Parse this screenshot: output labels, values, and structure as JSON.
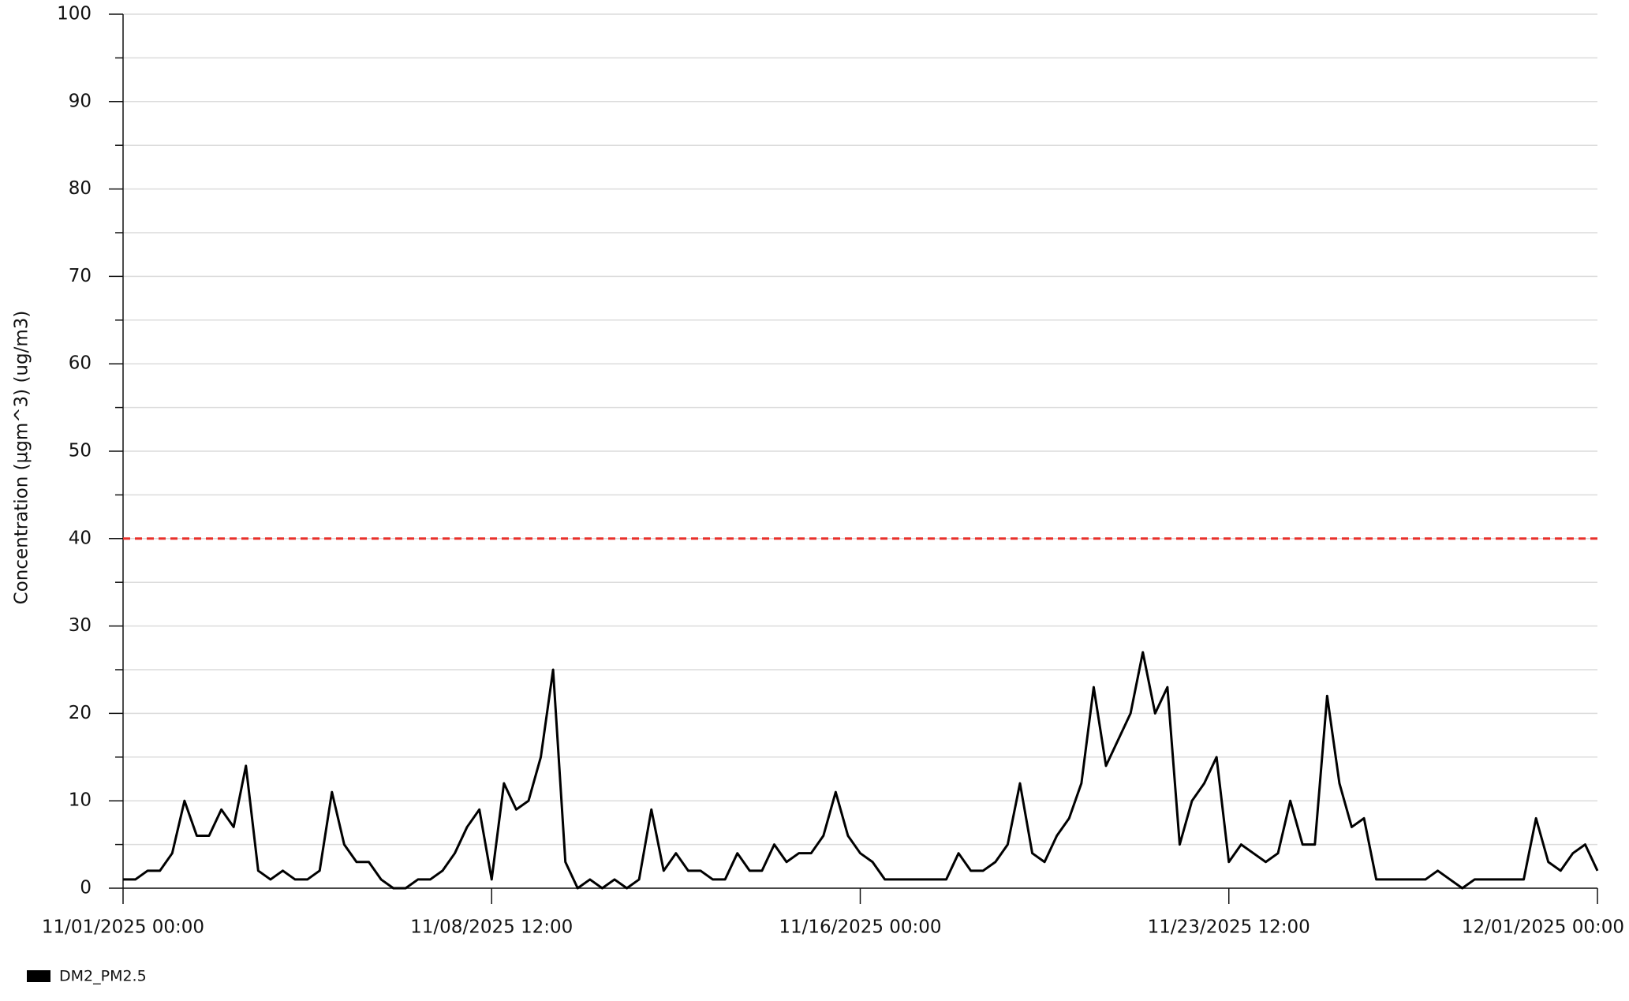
{
  "chart_data": {
    "type": "line",
    "ylabel": "Concentration (µgm^3) (ug/m3)",
    "ylim": [
      0,
      100
    ],
    "yticks": [
      0,
      10,
      20,
      30,
      40,
      50,
      60,
      70,
      80,
      90,
      100
    ],
    "yminorticks": [
      5,
      15,
      25,
      35,
      45,
      55,
      65,
      75,
      85,
      95
    ],
    "grid": true,
    "xlim": [
      "11/01/2025 00:00",
      "12/01/2025 00:00"
    ],
    "xticks": [
      "11/01/2025 00:00",
      "11/08/2025 12:00",
      "11/16/2025 00:00",
      "11/23/2025 12:00",
      "12/01/2025 00:00"
    ],
    "threshold": {
      "value": 40,
      "color": "#e8302a"
    },
    "legend": "bottom-left",
    "x": [
      "11/01/2025 00:00",
      "11/01/2025 06:00",
      "11/01/2025 12:00",
      "11/01/2025 18:00",
      "11/02/2025 00:00",
      "11/02/2025 06:00",
      "11/02/2025 12:00",
      "11/02/2025 18:00",
      "11/03/2025 00:00",
      "11/03/2025 06:00",
      "11/03/2025 12:00",
      "11/03/2025 18:00",
      "11/04/2025 00:00",
      "11/04/2025 06:00",
      "11/04/2025 12:00",
      "11/04/2025 18:00",
      "11/05/2025 00:00",
      "11/05/2025 06:00",
      "11/05/2025 12:00",
      "11/05/2025 18:00",
      "11/06/2025 00:00",
      "11/06/2025 06:00",
      "11/06/2025 12:00",
      "11/06/2025 18:00",
      "11/07/2025 00:00",
      "11/07/2025 06:00",
      "11/07/2025 12:00",
      "11/07/2025 18:00",
      "11/08/2025 00:00",
      "11/08/2025 06:00",
      "11/08/2025 12:00",
      "11/08/2025 18:00",
      "11/09/2025 00:00",
      "11/09/2025 06:00",
      "11/09/2025 12:00",
      "11/09/2025 18:00",
      "11/10/2025 00:00",
      "11/10/2025 06:00",
      "11/10/2025 12:00",
      "11/10/2025 18:00",
      "11/11/2025 00:00",
      "11/11/2025 06:00",
      "11/11/2025 12:00",
      "11/11/2025 18:00",
      "11/12/2025 00:00",
      "11/12/2025 06:00",
      "11/12/2025 12:00",
      "11/12/2025 18:00",
      "11/13/2025 00:00",
      "11/13/2025 06:00",
      "11/13/2025 12:00",
      "11/13/2025 18:00",
      "11/14/2025 00:00",
      "11/14/2025 06:00",
      "11/14/2025 12:00",
      "11/14/2025 18:00",
      "11/15/2025 00:00",
      "11/15/2025 06:00",
      "11/15/2025 12:00",
      "11/15/2025 18:00",
      "11/16/2025 00:00",
      "11/16/2025 06:00",
      "11/16/2025 12:00",
      "11/16/2025 18:00",
      "11/17/2025 00:00",
      "11/17/2025 06:00",
      "11/17/2025 12:00",
      "11/17/2025 18:00",
      "11/18/2025 00:00",
      "11/18/2025 06:00",
      "11/18/2025 12:00",
      "11/18/2025 18:00",
      "11/19/2025 00:00",
      "11/19/2025 06:00",
      "11/19/2025 12:00",
      "11/19/2025 18:00",
      "11/20/2025 00:00",
      "11/20/2025 06:00",
      "11/20/2025 12:00",
      "11/20/2025 18:00",
      "11/21/2025 00:00",
      "11/21/2025 06:00",
      "11/21/2025 12:00",
      "11/21/2025 18:00",
      "11/22/2025 00:00",
      "11/22/2025 06:00",
      "11/22/2025 12:00",
      "11/22/2025 18:00",
      "11/23/2025 00:00",
      "11/23/2025 06:00",
      "11/23/2025 12:00",
      "11/23/2025 18:00",
      "11/24/2025 00:00",
      "11/24/2025 06:00",
      "11/24/2025 12:00",
      "11/24/2025 18:00",
      "11/25/2025 00:00",
      "11/25/2025 06:00",
      "11/25/2025 12:00",
      "11/25/2025 18:00",
      "11/26/2025 00:00",
      "11/26/2025 06:00",
      "11/26/2025 12:00",
      "11/26/2025 18:00",
      "11/27/2025 00:00",
      "11/27/2025 06:00",
      "11/27/2025 12:00",
      "11/27/2025 18:00",
      "11/28/2025 00:00",
      "11/28/2025 06:00",
      "11/28/2025 12:00",
      "11/28/2025 18:00",
      "11/29/2025 00:00",
      "11/29/2025 06:00",
      "11/29/2025 12:00",
      "11/29/2025 18:00",
      "11/30/2025 00:00",
      "11/30/2025 06:00",
      "11/30/2025 12:00",
      "11/30/2025 18:00",
      "12/01/2025 00:00"
    ],
    "series": [
      {
        "name": "DM2_PM2.5",
        "color": "#000000",
        "values": [
          1,
          1,
          2,
          2,
          4,
          10,
          6,
          6,
          9,
          7,
          14,
          2,
          1,
          2,
          1,
          1,
          2,
          11,
          5,
          3,
          3,
          1,
          0,
          0,
          1,
          1,
          2,
          4,
          7,
          9,
          1,
          12,
          9,
          10,
          15,
          25,
          3,
          0,
          1,
          0,
          1,
          0,
          1,
          9,
          2,
          4,
          2,
          2,
          1,
          1,
          4,
          2,
          2,
          5,
          3,
          4,
          4,
          6,
          11,
          6,
          4,
          3,
          1,
          1,
          1,
          1,
          1,
          1,
          4,
          2,
          2,
          3,
          5,
          12,
          4,
          3,
          6,
          8,
          12,
          23,
          14,
          17,
          20,
          27,
          20,
          23,
          5,
          10,
          12,
          15,
          3,
          5,
          4,
          3,
          4,
          10,
          5,
          5,
          22,
          12,
          7,
          8,
          1,
          1,
          1,
          1,
          1,
          2,
          1,
          0,
          1,
          1,
          1,
          1,
          1,
          8,
          3,
          2,
          4,
          5,
          2
        ]
      }
    ]
  }
}
